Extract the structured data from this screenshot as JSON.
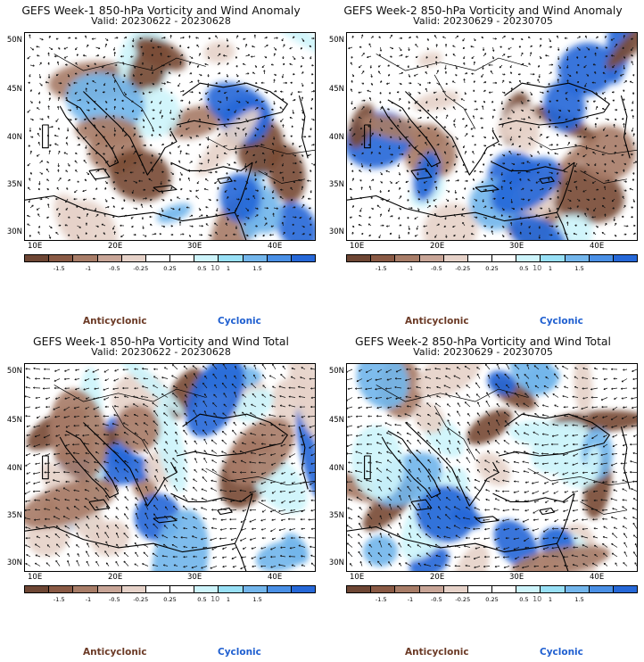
{
  "panels": [
    {
      "title": "GEFS Week-1 850-hPa Vorticity and Wind Anomaly",
      "valid": "Valid: 20230622 - 20230628",
      "anticyclonic": "Anticyclonic",
      "cyclonic": "Cyclonic",
      "kind": "anomaly",
      "variant": 1
    },
    {
      "title": "GEFS Week-2 850-hPa Vorticity and Wind Anomaly",
      "valid": "Valid: 20230629 - 20230705",
      "anticyclonic": "Anticyclonic",
      "cyclonic": "Cyclonic",
      "kind": "anomaly",
      "variant": 2
    },
    {
      "title": "GEFS Week-1 850-hPa Vorticity and Wind Total",
      "valid": "Valid: 20230622 - 20230628",
      "anticyclonic": "Anticyclonic",
      "cyclonic": "Cyclonic",
      "kind": "total",
      "variant": 3
    },
    {
      "title": "GEFS Week-2 850-hPa Vorticity and Wind Total",
      "valid": "Valid: 20230629 - 20230705",
      "anticyclonic": "Anticyclonic",
      "cyclonic": "Cyclonic",
      "kind": "total",
      "variant": 4
    }
  ],
  "map": {
    "lat_labels": [
      "50N",
      "45N",
      "40N",
      "35N",
      "30N"
    ],
    "lat_values": [
      50,
      45,
      40,
      35,
      30
    ],
    "lon_labels": [
      "10E",
      "20E",
      "30E",
      "40E"
    ],
    "lon_values": [
      10,
      20,
      30,
      40
    ],
    "lat_range": [
      28.5,
      51.5
    ],
    "lon_range": [
      8,
      46
    ]
  },
  "colorbar": {
    "tick_labels": [
      "-1.5",
      "-1",
      "-0.5",
      "-0.25",
      "0.25",
      "0.5",
      "1",
      "1.5"
    ],
    "unit_label": "10",
    "colors": [
      "#6e4634",
      "#8a5a45",
      "#a87d68",
      "#c8a597",
      "#e6d2c9",
      "#ffffff",
      "#ffffff",
      "#cdf4fb",
      "#98e0f6",
      "#73b6ec",
      "#4a90e6",
      "#2668d8"
    ]
  },
  "palette": {
    "neg_strong": "#7a4c36",
    "neg_mid": "#a87d68",
    "neg_weak": "#e6d2c9",
    "pos_weak": "#cdf4fb",
    "pos_mid": "#73b6ec",
    "pos_strong": "#2668d8"
  }
}
